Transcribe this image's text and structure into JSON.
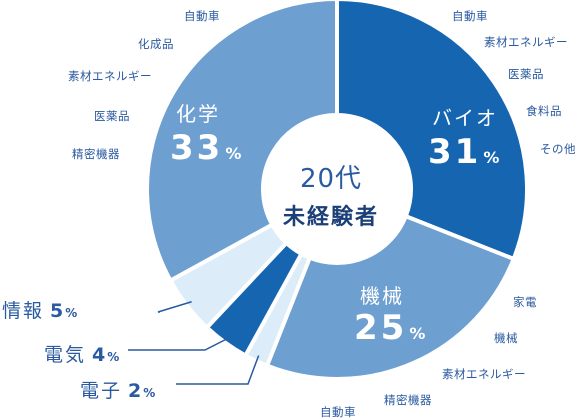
{
  "chart_data": {
    "type": "pie",
    "center_label": [
      "20代",
      "未経験者"
    ],
    "unit": "%",
    "slices": [
      {
        "name": "バイオ",
        "value": 31,
        "color": "#1565b0",
        "items": [
          "自動車",
          "素材エネルギー",
          "医薬品",
          "食料品",
          "その他"
        ]
      },
      {
        "name": "機械",
        "value": 25,
        "color": "#6e9fd1",
        "items": [
          "家電",
          "機械",
          "素材エネルギー",
          "精密機器",
          "自動車"
        ]
      },
      {
        "name": "電子",
        "value": 2,
        "color": "#dcedf9",
        "items": []
      },
      {
        "name": "電気",
        "value": 4,
        "color": "#1565b0",
        "items": []
      },
      {
        "name": "情報",
        "value": 5,
        "color": "#dcedf9",
        "items": []
      },
      {
        "name": "化学",
        "value": 33,
        "color": "#6e9fd1",
        "items": [
          "自動車",
          "化成品",
          "素材エネルギー",
          "医薬品",
          "精密機器"
        ]
      }
    ]
  }
}
